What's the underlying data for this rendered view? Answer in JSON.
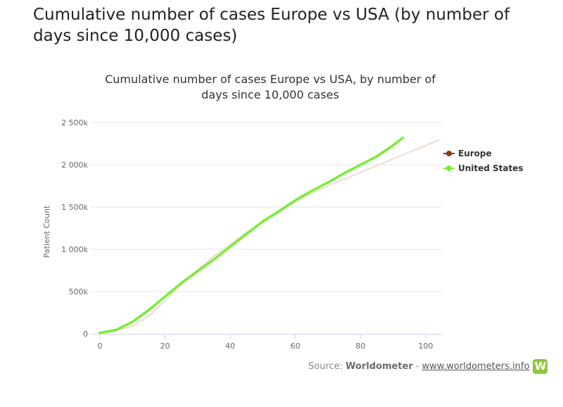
{
  "page": {
    "title": "Cumulative number of cases Europe vs USA (by number of days since 10,000 cases)"
  },
  "chart_data": {
    "type": "line",
    "title": "Cumulative number of cases Europe vs USA, by number of days since 10,000 cases",
    "xlabel": "",
    "ylabel": "Patient Count",
    "xlim": [
      -3,
      105
    ],
    "ylim": [
      0,
      2500000
    ],
    "x_ticks": [
      "0",
      "20",
      "40",
      "60",
      "80",
      "100"
    ],
    "y_ticks": [
      "0",
      "500k",
      "1 000k",
      "1 500k",
      "2 000k",
      "2 500k"
    ],
    "grid": true,
    "legend_position": "right",
    "series": [
      {
        "name": "Europe",
        "color": "#8b3a0e",
        "line_color": "#ecdcd2",
        "x": [
          0,
          5,
          10,
          15,
          20,
          25,
          30,
          35,
          40,
          45,
          50,
          55,
          60,
          65,
          70,
          75,
          80,
          85,
          90,
          95,
          100,
          104
        ],
        "values": [
          10000,
          35000,
          90000,
          210000,
          390000,
          580000,
          760000,
          920000,
          1060000,
          1200000,
          1320000,
          1440000,
          1560000,
          1660000,
          1750000,
          1830000,
          1910000,
          1990000,
          2070000,
          2150000,
          2230000,
          2290000
        ]
      },
      {
        "name": "United States",
        "color": "#77ee33",
        "line_color": "#77ee33",
        "x": [
          0,
          5,
          10,
          15,
          20,
          25,
          30,
          35,
          40,
          45,
          50,
          55,
          60,
          65,
          70,
          75,
          80,
          85,
          90,
          93
        ],
        "values": [
          10000,
          45000,
          140000,
          280000,
          440000,
          600000,
          740000,
          880000,
          1030000,
          1180000,
          1330000,
          1450000,
          1580000,
          1690000,
          1790000,
          1900000,
          2000000,
          2100000,
          2230000,
          2320000
        ]
      }
    ]
  },
  "source": {
    "label": "Source:",
    "name": "Worldometer",
    "separator": "-",
    "link": "www.worldometers.info",
    "logo_letter": "W"
  }
}
